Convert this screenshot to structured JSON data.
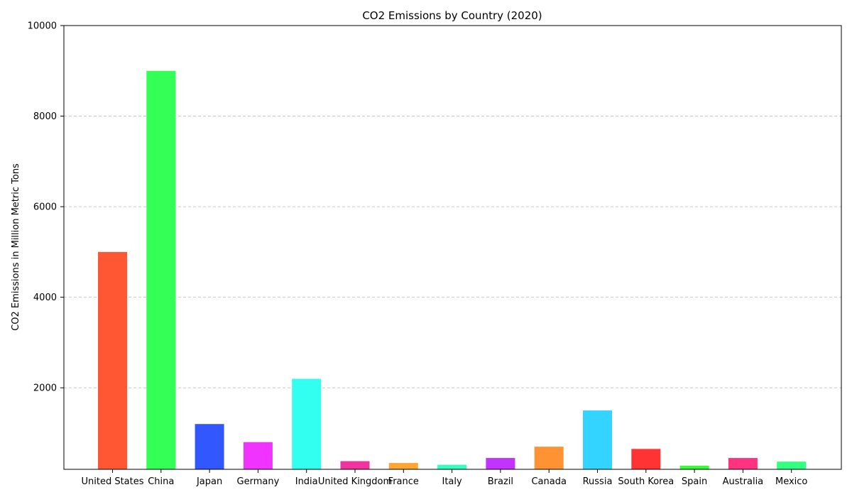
{
  "chart_data": {
    "type": "bar",
    "title": "CO2 Emissions by Country (2020)",
    "xlabel": "",
    "ylabel": "CO2 Emissions in Million Metric Tons",
    "ylim": [
      200,
      10000
    ],
    "yticks": [
      2000,
      4000,
      6000,
      8000,
      10000
    ],
    "grid": {
      "y": true,
      "x": false,
      "style": "dashed"
    },
    "categories": [
      "United States",
      "China",
      "Japan",
      "Germany",
      "India",
      "United Kingdom",
      "France",
      "Italy",
      "Brazil",
      "Canada",
      "Russia",
      "South Korea",
      "Spain",
      "Australia",
      "Mexico"
    ],
    "values": [
      5000,
      9000,
      1200,
      800,
      2200,
      380,
      340,
      300,
      450,
      700,
      1500,
      650,
      280,
      450,
      370
    ],
    "colors": [
      "#FF5733",
      "#33FF57",
      "#3357FF",
      "#F033FF",
      "#33FFF0",
      "#F0339F",
      "#FFA533",
      "#33FFC1",
      "#C133FF",
      "#FF9233",
      "#33D4FF",
      "#FF3333",
      "#33FF33",
      "#FF3380",
      "#33FF80"
    ]
  }
}
